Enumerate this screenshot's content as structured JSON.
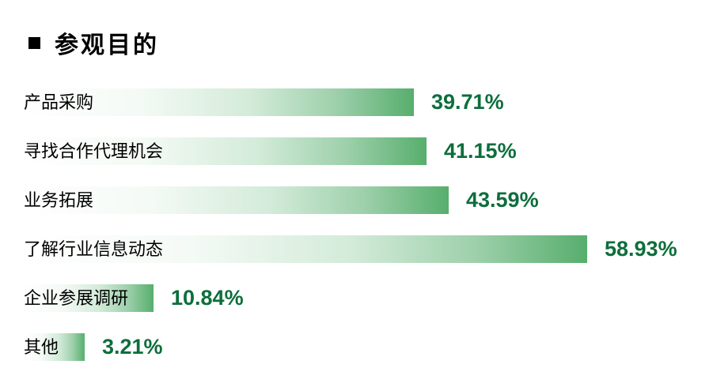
{
  "title": {
    "text": "参观目的"
  },
  "chart_data": {
    "type": "bar",
    "orientation": "horizontal",
    "title": "参观目的",
    "categories": [
      "产品采购",
      "寻找合作代理机会",
      "业务拓展",
      "了解行业信息动态",
      "企业参展调研",
      "其他"
    ],
    "values": [
      39.71,
      41.15,
      43.59,
      58.93,
      10.84,
      3.21
    ],
    "value_labels": [
      "39.71%",
      "41.15%",
      "43.59%",
      "58.93%",
      "10.84%",
      "3.21%"
    ],
    "xlabel": "",
    "ylabel": "",
    "xlim": [
      0,
      60
    ],
    "grid": false,
    "legend": false,
    "colors": {
      "bar_gradient_start": "#ffffff",
      "bar_gradient_end": "#57ae6d",
      "value_text": "#0d6e3c",
      "label_text": "#000000",
      "title_text": "#000000",
      "title_bullet": "#000000"
    }
  }
}
